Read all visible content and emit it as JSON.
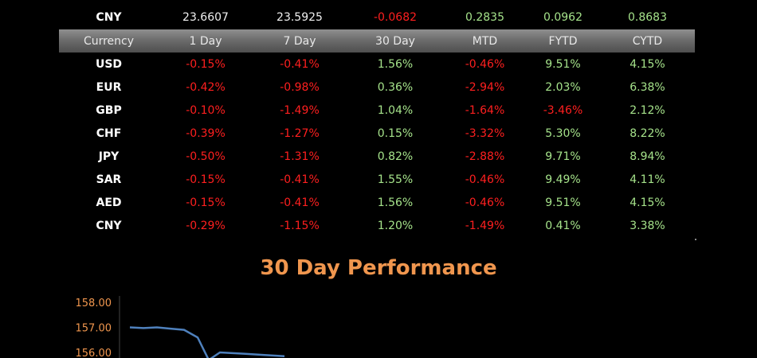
{
  "top_row": {
    "currency": "CNY",
    "values": [
      "23.6607",
      "23.5925",
      "-0.0682",
      "0.2835",
      "0.0962",
      "0.8683"
    ],
    "tones": [
      "neutral",
      "neutral",
      "neg",
      "pos",
      "pos",
      "pos"
    ]
  },
  "header": [
    "Currency",
    "1 Day",
    "7 Day",
    "30 Day",
    "MTD",
    "FYTD",
    "CYTD"
  ],
  "rows": [
    {
      "currency": "USD",
      "values": [
        "-0.15%",
        "-0.41%",
        "1.56%",
        "-0.46%",
        "9.51%",
        "4.15%"
      ]
    },
    {
      "currency": "EUR",
      "values": [
        "-0.42%",
        "-0.98%",
        "0.36%",
        "-2.94%",
        "2.03%",
        "6.38%"
      ]
    },
    {
      "currency": "GBP",
      "values": [
        "-0.10%",
        "-1.49%",
        "1.04%",
        "-1.64%",
        "-3.46%",
        "2.12%"
      ]
    },
    {
      "currency": "CHF",
      "values": [
        "-0.39%",
        "-1.27%",
        "0.15%",
        "-3.32%",
        "5.30%",
        "8.22%"
      ]
    },
    {
      "currency": "JPY",
      "values": [
        "-0.50%",
        "-1.31%",
        "0.82%",
        "-2.88%",
        "9.71%",
        "8.94%"
      ]
    },
    {
      "currency": "SAR",
      "values": [
        "-0.15%",
        "-0.41%",
        "1.55%",
        "-0.46%",
        "9.49%",
        "4.11%"
      ]
    },
    {
      "currency": "AED",
      "values": [
        "-0.15%",
        "-0.41%",
        "1.56%",
        "-0.46%",
        "9.51%",
        "4.15%"
      ]
    },
    {
      "currency": "CNY",
      "values": [
        "-0.29%",
        "-1.15%",
        "1.20%",
        "-1.49%",
        "0.41%",
        "3.38%"
      ]
    }
  ],
  "colors": {
    "negative": "#ff1f1f",
    "positive": "#a5e28a",
    "title": "#f0964e",
    "line": "#4f81bd"
  },
  "chart_data": {
    "type": "line",
    "title": "30 Day Performance",
    "xlabel": "",
    "ylabel": "",
    "yticks": [
      "158.00",
      "157.00",
      "156.00"
    ],
    "ylim": [
      155.5,
      158.5
    ],
    "x": [
      1,
      2,
      3,
      4,
      5,
      6,
      7,
      8,
      9,
      10,
      11
    ],
    "series": [
      {
        "values": [
          157.0,
          156.97,
          157.0,
          156.95,
          156.9,
          156.6,
          155.7,
          156.0,
          155.95,
          155.9,
          155.85
        ]
      }
    ]
  }
}
